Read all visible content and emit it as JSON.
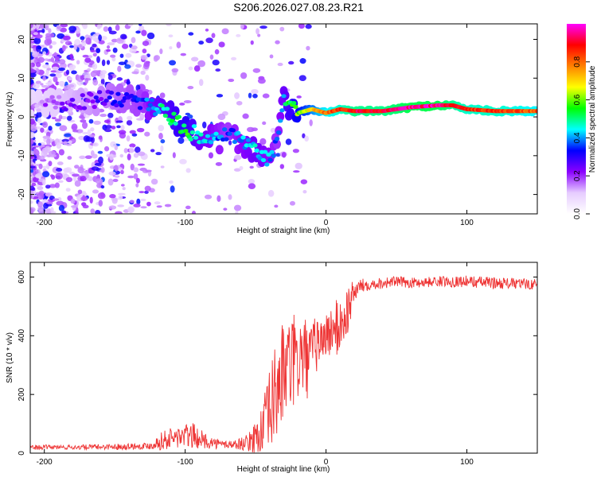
{
  "figure_title": "S206.2026.027.08.23.R21",
  "chart_data": [
    {
      "type": "heatmap",
      "title": "S206.2026.027.08.23.R21",
      "xlabel": "Height of straight line (km)",
      "ylabel": "Frequency (Hz)",
      "xlim": [
        -210,
        150
      ],
      "ylim": [
        -25,
        24
      ],
      "xticks": [
        -200,
        -100,
        0,
        100
      ],
      "yticks": [
        -20,
        -10,
        0,
        10,
        20
      ],
      "colorbar": {
        "label": "Normalized spectral amplitude",
        "range": [
          0,
          1
        ],
        "ticks": [
          "0.0",
          "0.2",
          "0.4",
          "0.6",
          "0.8"
        ],
        "tick_values": [
          0.0,
          0.2,
          0.4,
          0.6,
          0.8
        ],
        "stops": [
          "#ffffff",
          "#e6ccff",
          "#8a00ff",
          "#0000ff",
          "#00ffff",
          "#00ff00",
          "#ffff00",
          "#ff8000",
          "#ff0000",
          "#ff00ff"
        ]
      },
      "ridge": {
        "height_km": [
          -210,
          -170,
          -150,
          -130,
          -120,
          -110,
          -100,
          -90,
          -80,
          -70,
          -60,
          -50,
          -40,
          -35,
          -30,
          -20,
          -10,
          0,
          10,
          20,
          40,
          60,
          80,
          90,
          100,
          120,
          150
        ],
        "frequency_hz": [
          3,
          4,
          5,
          4,
          2,
          0,
          -3,
          -5,
          -6,
          -5,
          -6,
          -9,
          -11,
          -7,
          4,
          1,
          2,
          1,
          2,
          1.5,
          1.5,
          2.5,
          3,
          3,
          2,
          1.5,
          1.5
        ],
        "amplitude": [
          0.15,
          0.25,
          0.3,
          0.35,
          0.45,
          0.5,
          0.55,
          0.45,
          0.4,
          0.35,
          0.4,
          0.45,
          0.4,
          0.35,
          0.45,
          0.6,
          0.7,
          0.8,
          0.85,
          0.9,
          0.9,
          0.95,
          0.95,
          0.9,
          0.85,
          0.85,
          0.8
        ]
      }
    },
    {
      "type": "line",
      "xlabel": "Height of straight line (km)",
      "ylabel": "SNR (10 * v/v)",
      "xlim": [
        -210,
        150
      ],
      "ylim": [
        0,
        650
      ],
      "xticks": [
        -200,
        -100,
        0,
        100
      ],
      "yticks": [
        0,
        200,
        400,
        600
      ],
      "color": "#ee3333",
      "series": [
        {
          "name": "SNR",
          "x": [
            -210,
            -180,
            -150,
            -125,
            -115,
            -105,
            -95,
            -85,
            -75,
            -65,
            -55,
            -45,
            -40,
            -35,
            -30,
            -25,
            -20,
            -15,
            -12,
            -10,
            -5,
            0,
            5,
            10,
            15,
            20,
            25,
            30,
            40,
            50,
            60,
            80,
            100,
            120,
            150
          ],
          "mean": [
            20,
            20,
            22,
            25,
            45,
            55,
            60,
            40,
            30,
            30,
            35,
            80,
            140,
            220,
            280,
            300,
            320,
            330,
            300,
            350,
            380,
            400,
            420,
            430,
            480,
            550,
            570,
            575,
            580,
            585,
            580,
            585,
            585,
            580,
            575
          ],
          "amp": [
            8,
            8,
            10,
            12,
            35,
            40,
            45,
            25,
            15,
            15,
            30,
            90,
            150,
            180,
            180,
            170,
            160,
            140,
            120,
            110,
            90,
            80,
            90,
            110,
            90,
            40,
            25,
            20,
            20,
            18,
            18,
            18,
            20,
            20,
            18
          ]
        }
      ]
    }
  ]
}
